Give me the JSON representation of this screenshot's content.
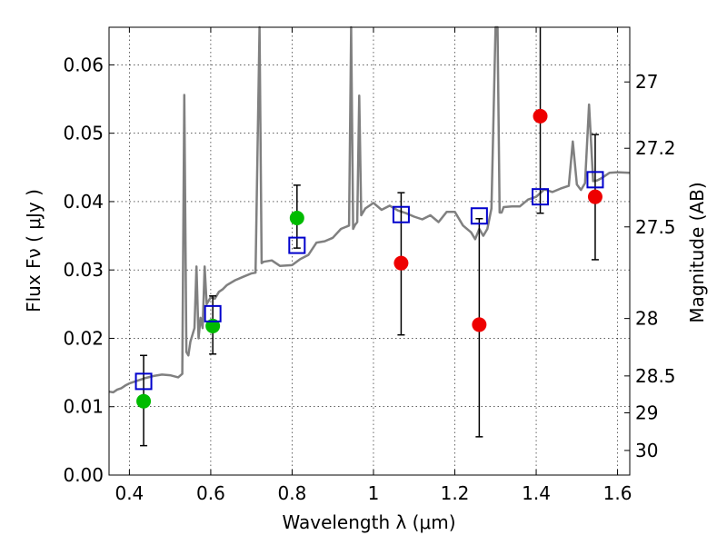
{
  "chart_data": {
    "type": "scatter",
    "title": "",
    "xlabel": "Wavelength  λ (μm)",
    "ylabel": "Flux  Fν  ( μJy )",
    "ylabel_right": "Magnitude (AB)",
    "xlim": [
      0.35,
      1.63
    ],
    "ylim": [
      0.0,
      0.0655
    ],
    "x_ticks": [
      0.4,
      0.6,
      0.8,
      1.0,
      1.2,
      1.4,
      1.6
    ],
    "x_tick_labels": [
      "0.4",
      "0.6",
      "0.8",
      "1",
      "1.2",
      "1.4",
      "1.6"
    ],
    "y_ticks": [
      0.0,
      0.01,
      0.02,
      0.03,
      0.04,
      0.05,
      0.06
    ],
    "y_tick_labels": [
      "0.00",
      "0.01",
      "0.02",
      "0.03",
      "0.04",
      "0.05",
      "0.06"
    ],
    "right_ticks": [
      {
        "label": "27",
        "flux": 0.0575
      },
      {
        "label": "27.2",
        "flux": 0.0478
      },
      {
        "label": "27.5",
        "flux": 0.0363
      },
      {
        "label": "28",
        "flux": 0.0229
      },
      {
        "label": "28.5",
        "flux": 0.0145
      },
      {
        "label": "29",
        "flux": 0.0091
      },
      {
        "label": "30",
        "flux": 0.0036
      }
    ],
    "grid": true,
    "colors": {
      "model": "#808080",
      "green": "#00bb00",
      "red": "#ee0000",
      "square": "#0000cc",
      "error": "#000000"
    },
    "model_spectrum": {
      "name": "model spectrum",
      "x": [
        0.35,
        0.36,
        0.37,
        0.38,
        0.39,
        0.4,
        0.42,
        0.44,
        0.46,
        0.48,
        0.5,
        0.52,
        0.53,
        0.535,
        0.54,
        0.545,
        0.55,
        0.56,
        0.565,
        0.57,
        0.575,
        0.58,
        0.585,
        0.59,
        0.6,
        0.61,
        0.62,
        0.63,
        0.64,
        0.66,
        0.68,
        0.7,
        0.71,
        0.72,
        0.725,
        0.73,
        0.75,
        0.77,
        0.8,
        0.82,
        0.84,
        0.86,
        0.88,
        0.9,
        0.92,
        0.94,
        0.945,
        0.95,
        0.955,
        0.96,
        0.965,
        0.97,
        0.975,
        0.98,
        1.0,
        1.02,
        1.04,
        1.06,
        1.08,
        1.1,
        1.12,
        1.14,
        1.16,
        1.18,
        1.2,
        1.22,
        1.24,
        1.25,
        1.26,
        1.27,
        1.28,
        1.29,
        1.3,
        1.305,
        1.31,
        1.315,
        1.32,
        1.34,
        1.36,
        1.38,
        1.4,
        1.42,
        1.44,
        1.46,
        1.48,
        1.49,
        1.5,
        1.51,
        1.52,
        1.53,
        1.54,
        1.55,
        1.56,
        1.58,
        1.6,
        1.63
      ],
      "y": [
        0.0122,
        0.0121,
        0.0125,
        0.0127,
        0.0131,
        0.0134,
        0.0138,
        0.0142,
        0.0145,
        0.0147,
        0.0146,
        0.0143,
        0.0148,
        0.0556,
        0.018,
        0.0175,
        0.0195,
        0.0215,
        0.0305,
        0.02,
        0.023,
        0.0215,
        0.0305,
        0.025,
        0.026,
        0.0258,
        0.0268,
        0.0272,
        0.0278,
        0.0285,
        0.029,
        0.0295,
        0.0296,
        0.0655,
        0.031,
        0.0312,
        0.0314,
        0.0306,
        0.0307,
        0.0316,
        0.0322,
        0.034,
        0.0342,
        0.0347,
        0.036,
        0.0365,
        0.0655,
        0.036,
        0.0366,
        0.037,
        0.0555,
        0.038,
        0.0385,
        0.039,
        0.0398,
        0.0388,
        0.0394,
        0.0387,
        0.0383,
        0.0378,
        0.0374,
        0.038,
        0.037,
        0.0385,
        0.0385,
        0.0365,
        0.0355,
        0.0345,
        0.036,
        0.035,
        0.036,
        0.039,
        0.0655,
        0.0655,
        0.0384,
        0.0384,
        0.0392,
        0.0393,
        0.0393,
        0.0403,
        0.0407,
        0.0418,
        0.0414,
        0.0419,
        0.0423,
        0.0488,
        0.0425,
        0.0417,
        0.0427,
        0.0542,
        0.043,
        0.0431,
        0.0434,
        0.0442,
        0.0443,
        0.0442
      ]
    },
    "green_points": {
      "name": "green circles",
      "x": [
        0.435,
        0.605,
        0.812
      ],
      "y": [
        0.0108,
        0.0218,
        0.0376
      ],
      "err_low": [
        0.0043,
        0.0177,
        0.0332
      ],
      "err_high": [
        0.0175,
        0.0262,
        0.0424
      ]
    },
    "red_points": {
      "name": "red circles",
      "x": [
        1.068,
        1.26,
        1.41,
        1.545
      ],
      "y": [
        0.031,
        0.022,
        0.0525,
        0.0407
      ],
      "err_low": [
        0.0205,
        0.0056,
        0.0383,
        0.0315
      ],
      "err_high": [
        0.0413,
        0.0375,
        0.0655,
        0.0498
      ]
    },
    "blue_squares": {
      "name": "blue open squares",
      "x": [
        0.435,
        0.605,
        0.812,
        1.068,
        1.26,
        1.41,
        1.545
      ],
      "y": [
        0.0137,
        0.0236,
        0.0336,
        0.0381,
        0.0379,
        0.0407,
        0.0432
      ]
    }
  }
}
